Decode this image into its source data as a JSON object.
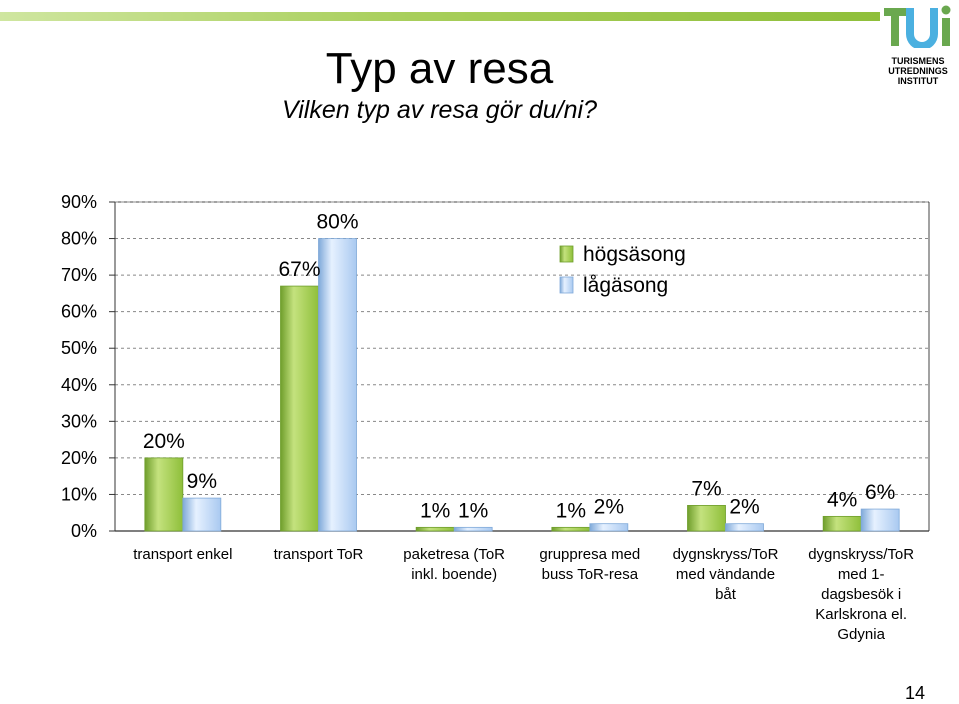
{
  "header": {
    "title": "Typ av resa",
    "subtitle": "Vilken typ av resa gör du/ni?"
  },
  "logo": {
    "lines": [
      "TURISMENS",
      "UTREDNINGS",
      "INSTITUT"
    ]
  },
  "page_number": "14",
  "colors": {
    "green": "#98c94a",
    "blue": "#b9d7fb",
    "band": "#a9cf5c",
    "logo_green": "#6aa84f",
    "logo_blue": "#4bb0e0"
  },
  "chart_data": {
    "type": "bar",
    "categories": [
      [
        "transport enkel"
      ],
      [
        "transport ToR"
      ],
      [
        "paketresa (ToR",
        "inkl. boende)"
      ],
      [
        "gruppresa med",
        "buss ToR-resa"
      ],
      [
        "dygnskryss/ToR",
        "med vändande",
        "båt"
      ],
      [
        "dygnskryss/ToR",
        "med 1-",
        "dagsbesök i",
        "Karlskrona el.",
        "Gdynia"
      ]
    ],
    "series": [
      {
        "name": "högsäsong",
        "values": [
          20,
          67,
          1,
          1,
          7,
          4
        ],
        "labels": [
          "20%",
          "67%",
          "1%",
          "1%",
          "7%",
          "4%"
        ]
      },
      {
        "name": "lågäsong",
        "values": [
          9,
          80,
          1,
          2,
          2,
          6
        ],
        "labels": [
          "9%",
          "80%",
          "1%",
          "2%",
          "2%",
          "6%"
        ]
      }
    ],
    "y_ticks": [
      "0%",
      "10%",
      "20%",
      "30%",
      "40%",
      "50%",
      "60%",
      "70%",
      "80%",
      "90%"
    ],
    "ylim": [
      0,
      90
    ],
    "grid": true,
    "legend_position": "top-center"
  }
}
